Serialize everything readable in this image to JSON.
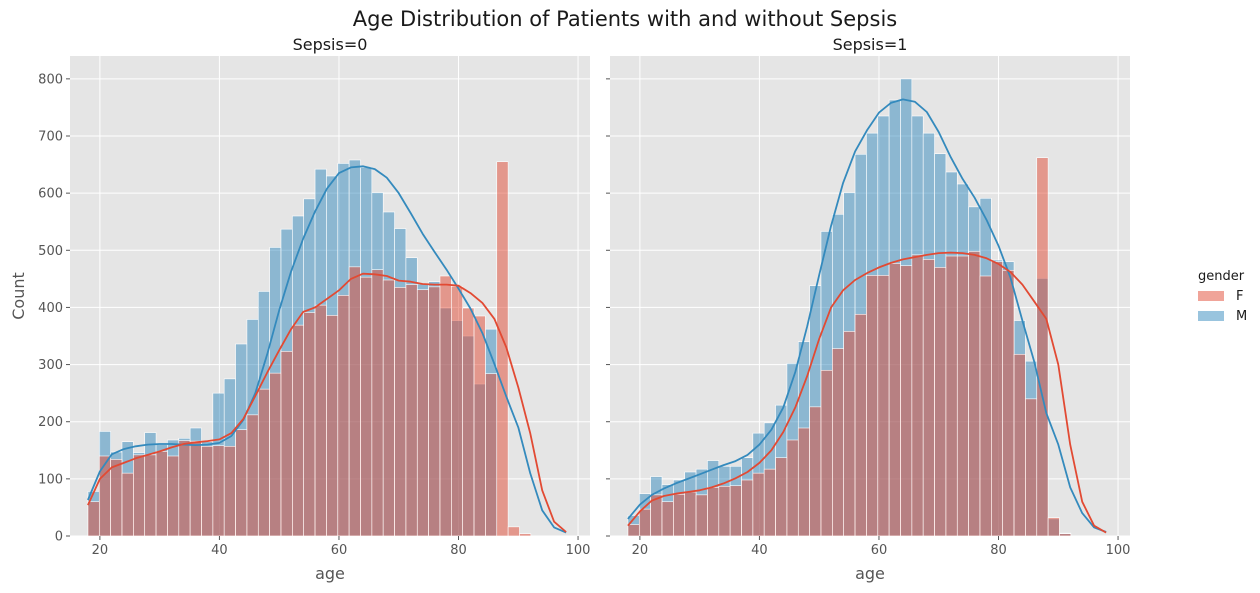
{
  "chart_data": {
    "type": "histogram",
    "title": "Age Distribution of Patients with and without Sepsis",
    "xlabel": "age",
    "ylabel": "Count",
    "xlim": [
      15,
      102
    ],
    "ylim": [
      0,
      840
    ],
    "x_ticks": [
      20,
      40,
      60,
      80,
      100
    ],
    "y_ticks": [
      0,
      100,
      200,
      300,
      400,
      500,
      600,
      700,
      800
    ],
    "grid": true,
    "bins": {
      "start": 18,
      "width": 1.9,
      "count": 42
    },
    "legend": {
      "title": "gender",
      "position": "right",
      "entries": [
        {
          "label": "F",
          "color": "#e24a33"
        },
        {
          "label": "M",
          "color": "#348abd"
        }
      ]
    },
    "panels": [
      {
        "title": "Sepsis=0",
        "series": [
          {
            "name": "M",
            "color": "#348abd",
            "values": [
              78,
              183,
              147,
              165,
              146,
              181,
              160,
              168,
              171,
              189,
              165,
              250,
              275,
              336,
              379,
              428,
              505,
              537,
              560,
              590,
              642,
              630,
              652,
              658,
              645,
              601,
              567,
              538,
              487,
              441,
              445,
              399,
              377,
              350,
              266,
              362,
              0,
              0,
              0,
              0,
              0,
              0
            ],
            "kde_x": [
              18,
              20,
              22,
              24,
              26,
              28,
              30,
              32,
              34,
              36,
              38,
              40,
              42,
              44,
              46,
              48,
              50,
              52,
              54,
              56,
              58,
              60,
              62,
              64,
              66,
              68,
              70,
              72,
              74,
              76,
              78,
              80,
              82,
              84,
              86,
              88,
              90,
              92,
              94,
              96,
              98
            ],
            "kde_y": [
              63,
              113,
              143,
              152,
              157,
              160,
              161,
              161,
              160,
              159,
              160,
              163,
              175,
              203,
              250,
              318,
              395,
              463,
              520,
              568,
              608,
              635,
              645,
              647,
              642,
              627,
              600,
              565,
              529,
              497,
              466,
              433,
              398,
              355,
              301,
              244,
              190,
              110,
              45,
              15,
              6
            ]
          },
          {
            "name": "F",
            "color": "#e24a33",
            "values": [
              60,
              140,
              134,
              110,
              142,
              142,
              148,
              140,
              167,
              166,
              157,
              158,
              157,
              186,
              212,
              257,
              285,
              323,
              369,
              391,
              404,
              386,
              421,
              471,
              453,
              466,
              448,
              435,
              440,
              431,
              436,
              455,
              437,
              399,
              385,
              284,
              655,
              16,
              4,
              0,
              0,
              0
            ],
            "kde_x": [
              18,
              20,
              22,
              24,
              26,
              28,
              30,
              32,
              34,
              36,
              38,
              40,
              42,
              44,
              46,
              48,
              50,
              52,
              54,
              56,
              58,
              60,
              62,
              64,
              66,
              68,
              70,
              72,
              74,
              76,
              78,
              80,
              82,
              84,
              86,
              88,
              90,
              92,
              94,
              96,
              98
            ],
            "kde_y": [
              54,
              100,
              120,
              128,
              136,
              142,
              148,
              155,
              161,
              164,
              166,
              169,
              180,
              205,
              245,
              286,
              325,
              362,
              392,
              400,
              415,
              430,
              450,
              459,
              458,
              455,
              447,
              445,
              441,
              440,
              440,
              438,
              425,
              408,
              380,
              330,
              260,
              180,
              80,
              25,
              7
            ]
          }
        ]
      },
      {
        "title": "Sepsis=1",
        "series": [
          {
            "name": "M",
            "color": "#348abd",
            "values": [
              36,
              74,
              104,
              90,
              98,
              112,
              117,
              132,
              122,
              122,
              137,
              180,
              198,
              229,
              302,
              340,
              438,
              533,
              563,
              601,
              668,
              705,
              735,
              763,
              800,
              735,
              705,
              669,
              637,
              616,
              576,
              591,
              483,
              480,
              377,
              306,
              451,
              30,
              5,
              0,
              0,
              0
            ],
            "kde_x": [
              18,
              20,
              22,
              24,
              26,
              28,
              30,
              32,
              34,
              36,
              38,
              40,
              42,
              44,
              46,
              48,
              50,
              52,
              54,
              56,
              58,
              60,
              62,
              64,
              66,
              68,
              70,
              72,
              74,
              76,
              78,
              80,
              82,
              84,
              86,
              88,
              90,
              92,
              94,
              96,
              98
            ],
            "kde_y": [
              30,
              55,
              72,
              83,
              92,
              100,
              108,
              116,
              124,
              131,
              142,
              160,
              186,
              225,
              287,
              367,
              457,
              543,
              618,
              673,
              710,
              741,
              758,
              764,
              760,
              742,
              707,
              663,
              625,
              592,
              553,
              508,
              452,
              377,
              304,
              215,
              160,
              85,
              40,
              15,
              7
            ]
          },
          {
            "name": "F",
            "color": "#e24a33",
            "values": [
              20,
              47,
              72,
              60,
              73,
              77,
              72,
              85,
              87,
              88,
              98,
              110,
              117,
              137,
              168,
              189,
              226,
              290,
              328,
              358,
              388,
              456,
              456,
              477,
              473,
              492,
              484,
              470,
              490,
              490,
              498,
              455,
              480,
              465,
              318,
              240,
              662,
              32,
              4,
              0,
              0,
              0
            ],
            "kde_x": [
              18,
              20,
              22,
              24,
              26,
              28,
              30,
              32,
              34,
              36,
              38,
              40,
              42,
              44,
              46,
              48,
              50,
              52,
              54,
              56,
              58,
              60,
              62,
              64,
              66,
              68,
              70,
              72,
              74,
              76,
              78,
              80,
              82,
              84,
              86,
              88,
              90,
              92,
              94,
              96,
              98
            ],
            "kde_y": [
              18,
              43,
              62,
              70,
              74,
              77,
              80,
              85,
              92,
              101,
              112,
              128,
              150,
              182,
              225,
              280,
              345,
              400,
              430,
              448,
              460,
              470,
              478,
              484,
              488,
              492,
              495,
              496,
              495,
              492,
              486,
              476,
              462,
              440,
              410,
              380,
              300,
              160,
              60,
              18,
              6
            ]
          }
        ]
      }
    ]
  }
}
